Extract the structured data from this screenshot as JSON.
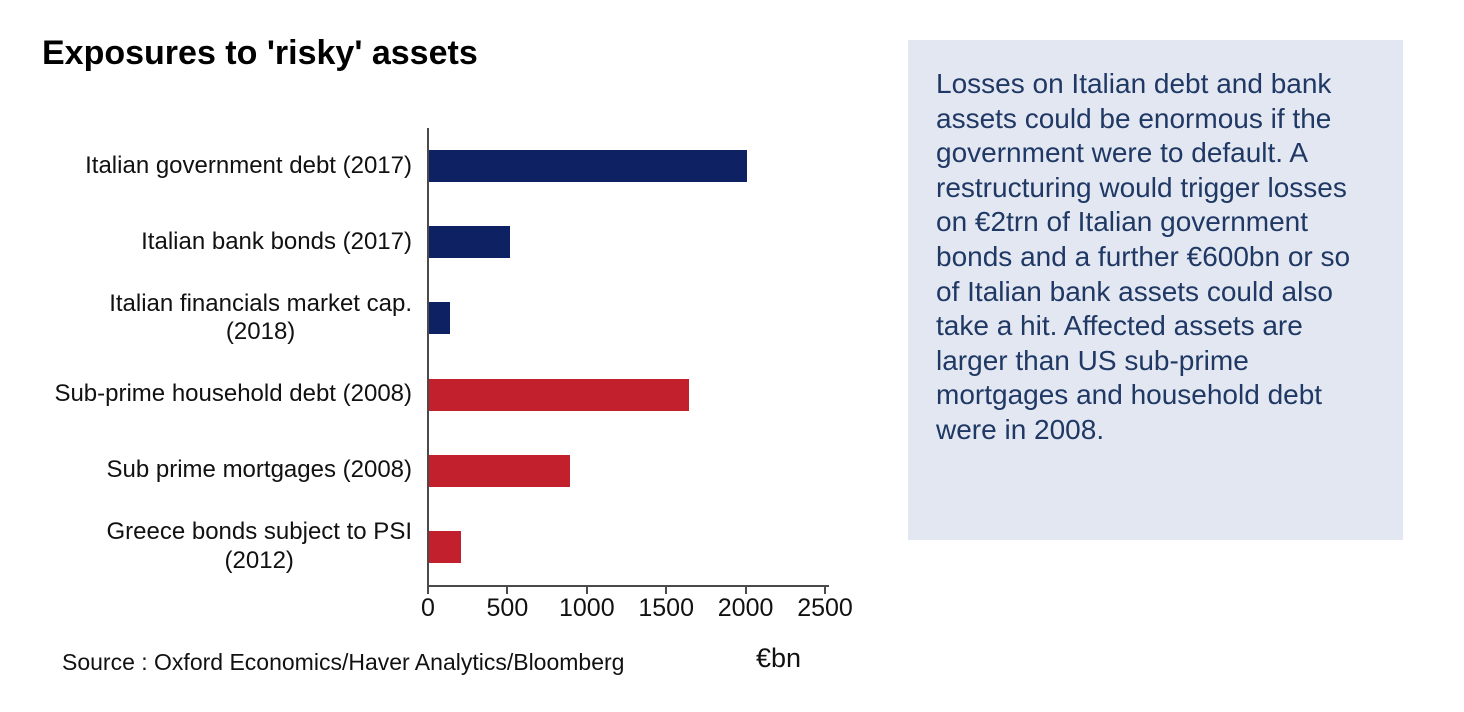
{
  "title": "Exposures to 'risky' assets",
  "source": "Source : Oxford Economics/Haver Analytics/Bloomberg",
  "commentary": "Losses on Italian debt and bank assets could be enormous if the government were to default. A restructuring would trigger losses on €2trn of Italian government bonds and a further €600bn or so of Italian bank assets could also take a hit. Affected assets are larger than US sub-prime mortgages and household debt were in 2008.",
  "colors": {
    "navy": "#0e2263",
    "red": "#c2202d",
    "axis": "#4a4a4a",
    "box_bg": "#e3e7f2",
    "box_text": "#1f3864"
  },
  "chart_data": {
    "type": "bar",
    "orientation": "horizontal",
    "title": "Exposures to 'risky' assets",
    "categories": [
      "Italian government debt (2017)",
      "Italian bank bonds (2017)",
      "Italian financials market cap. (2018)",
      "Sub-prime household debt (2008)",
      "Sub prime mortgages (2008)",
      "Greece bonds subject to PSI (2012)"
    ],
    "category_label_lines": [
      [
        "Italian government debt (2017)"
      ],
      [
        "Italian bank bonds (2017)"
      ],
      [
        "Italian financials market cap.",
        "(2018)"
      ],
      [
        "Sub-prime household debt (2008)"
      ],
      [
        "Sub prime mortgages (2008)"
      ],
      [
        "Greece bonds subject to PSI",
        "(2012)"
      ]
    ],
    "values": [
      2000,
      510,
      130,
      1640,
      890,
      200
    ],
    "bar_colors": [
      "#0e2263",
      "#0e2263",
      "#0e2263",
      "#c2202d",
      "#c2202d",
      "#c2202d"
    ],
    "xlabel": "€bn",
    "xlim": [
      0,
      2500
    ],
    "xticks": [
      0,
      500,
      1000,
      1500,
      2000,
      2500
    ],
    "grid": false,
    "legend": false
  }
}
